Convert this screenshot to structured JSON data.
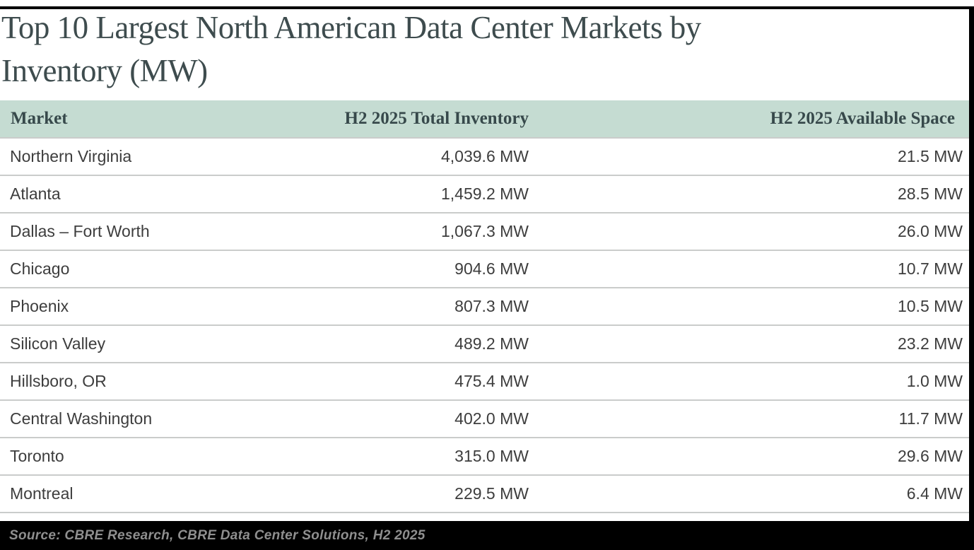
{
  "title": {
    "line1": "Top 10 Largest North American Data Center Markets by",
    "line2": "Inventory (MW)",
    "full": "Top 10 Largest North American Data Center Markets by Inventory (MW)"
  },
  "table": {
    "columns": [
      "Market",
      "H2 2025 Total Inventory",
      "H2 2025 Available Space"
    ],
    "rows": [
      {
        "market": "Northern Virginia",
        "total_inventory": "4,039.6 MW",
        "available_space": "21.5 MW"
      },
      {
        "market": "Atlanta",
        "total_inventory": "1,459.2 MW",
        "available_space": "28.5 MW"
      },
      {
        "market": "Dallas – Fort Worth",
        "total_inventory": "1,067.3 MW",
        "available_space": "26.0 MW"
      },
      {
        "market": "Chicago",
        "total_inventory": "904.6 MW",
        "available_space": "10.7 MW"
      },
      {
        "market": "Phoenix",
        "total_inventory": "807.3 MW",
        "available_space": "10.5 MW"
      },
      {
        "market": "Silicon Valley",
        "total_inventory": "489.2 MW",
        "available_space": "23.2 MW"
      },
      {
        "market": "Hillsboro, OR",
        "total_inventory": "475.4 MW",
        "available_space": "1.0 MW"
      },
      {
        "market": "Central Washington",
        "total_inventory": "402.0 MW",
        "available_space": "11.7 MW"
      },
      {
        "market": "Toronto",
        "total_inventory": "315.0 MW",
        "available_space": "29.6 MW"
      },
      {
        "market": "Montreal",
        "total_inventory": "229.5 MW",
        "available_space": "6.4 MW"
      }
    ]
  },
  "footer": {
    "source": "Source: CBRE Research, CBRE Data Center Solutions, H2 2025"
  },
  "colors": {
    "header_background": "#c5dcd2",
    "title_text": "#3e4c4e",
    "header_text": "#37494b",
    "body_text": "#3d3d3d",
    "divider": "#cacccb",
    "frame": "#000000",
    "footer_background": "#000000",
    "footer_text": "#8f8f8f"
  },
  "chart_data": {
    "type": "table",
    "title": "Top 10 Largest North American Data Center Markets by Inventory (MW)",
    "categories": [
      "Northern Virginia",
      "Atlanta",
      "Dallas – Fort Worth",
      "Chicago",
      "Phoenix",
      "Silicon Valley",
      "Hillsboro, OR",
      "Central Washington",
      "Toronto",
      "Montreal"
    ],
    "series": [
      {
        "name": "H2 2025 Total Inventory (MW)",
        "values": [
          4039.6,
          1459.2,
          1067.3,
          904.6,
          807.3,
          489.2,
          475.4,
          402.0,
          315.0,
          229.5
        ]
      },
      {
        "name": "H2 2025 Available Space (MW)",
        "values": [
          21.5,
          28.5,
          26.0,
          10.7,
          10.5,
          23.2,
          1.0,
          11.7,
          29.6,
          6.4
        ]
      }
    ],
    "unit": "MW",
    "source": "Source: CBRE Research, CBRE Data Center Solutions, H2 2025"
  }
}
